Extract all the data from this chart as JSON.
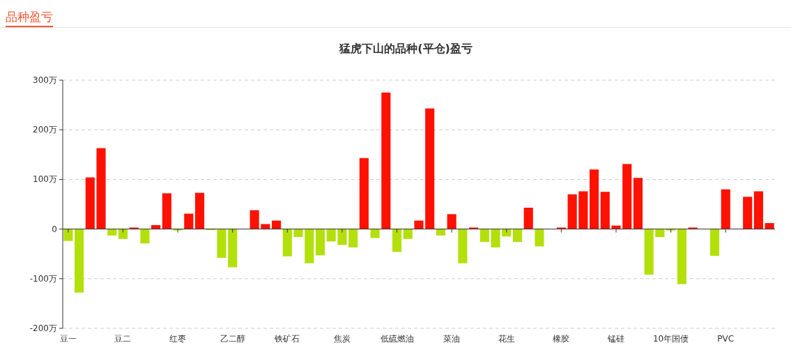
{
  "chart_data": {
    "type": "bar",
    "title": "猛虎下山的品种(平仓)盈亏",
    "annotations": [
      "品种盈亏"
    ],
    "categories": [
      "豆一",
      null,
      null,
      null,
      null,
      "豆二",
      null,
      null,
      null,
      null,
      "红枣",
      null,
      null,
      null,
      null,
      "乙二醇",
      null,
      null,
      null,
      null,
      "铁矿石",
      null,
      null,
      null,
      null,
      "焦炭",
      null,
      null,
      null,
      null,
      "低硫燃油",
      null,
      null,
      null,
      null,
      "菜油",
      null,
      null,
      null,
      null,
      "花生",
      null,
      null,
      null,
      null,
      "橡胶",
      null,
      null,
      null,
      null,
      "锰硅",
      null,
      null,
      null,
      null,
      "10年国债",
      null,
      null,
      null,
      null,
      "PVC",
      null,
      null,
      null,
      null
    ],
    "values": [
      -24,
      -128,
      104,
      163,
      -13,
      -20,
      3,
      -29,
      8,
      72,
      -3,
      31,
      73,
      -2,
      -58,
      -77,
      0,
      38,
      10,
      17,
      -55,
      -16,
      -69,
      -53,
      -25,
      -32,
      -37,
      143,
      -18,
      275,
      -46,
      -20,
      17,
      243,
      -13,
      30,
      -69,
      3,
      -26,
      -37,
      -15,
      -26,
      43,
      -35,
      0,
      3,
      70,
      76,
      120,
      75,
      7,
      131,
      103,
      -92,
      -16,
      -3,
      -111,
      3,
      0,
      -54,
      80,
      0,
      65,
      76,
      12
    ],
    "colors": [
      "#b3e00b",
      "#b3e00b",
      "#ff1100",
      "#ff1100",
      "#b3e00b",
      "#b3e00b",
      "#ff1100",
      "#b3e00b",
      "#ff1100",
      "#ff1100",
      "#b3e00b",
      "#ff1100",
      "#ff1100",
      "#b3e00b",
      "#b3e00b",
      "#b3e00b",
      "#ff1100",
      "#ff1100",
      "#ff1100",
      "#ff1100",
      "#b3e00b",
      "#b3e00b",
      "#b3e00b",
      "#b3e00b",
      "#b3e00b",
      "#b3e00b",
      "#b3e00b",
      "#ff1100",
      "#b3e00b",
      "#ff1100",
      "#b3e00b",
      "#b3e00b",
      "#ff1100",
      "#ff1100",
      "#b3e00b",
      "#ff1100",
      "#b3e00b",
      "#ff1100",
      "#b3e00b",
      "#b3e00b",
      "#b3e00b",
      "#b3e00b",
      "#ff1100",
      "#b3e00b",
      "#ff1100",
      "#ff1100",
      "#ff1100",
      "#ff1100",
      "#ff1100",
      "#ff1100",
      "#ff1100",
      "#ff1100",
      "#ff1100",
      "#b3e00b",
      "#b3e00b",
      "#b3e00b",
      "#b3e00b",
      "#ff1100",
      "#ff1100",
      "#b3e00b",
      "#ff1100",
      "#ff1100",
      "#ff1100",
      "#ff1100",
      "#ff1100"
    ],
    "ylim": [
      -200,
      300
    ],
    "yticks": [
      {
        "value": -200,
        "label": "-200万"
      },
      {
        "value": -100,
        "label": "-100万"
      },
      0,
      {
        "value": 100,
        "label": "100万"
      },
      {
        "value": 200,
        "label": "200万"
      },
      {
        "value": 300,
        "label": "300万"
      }
    ],
    "grid": "y"
  }
}
